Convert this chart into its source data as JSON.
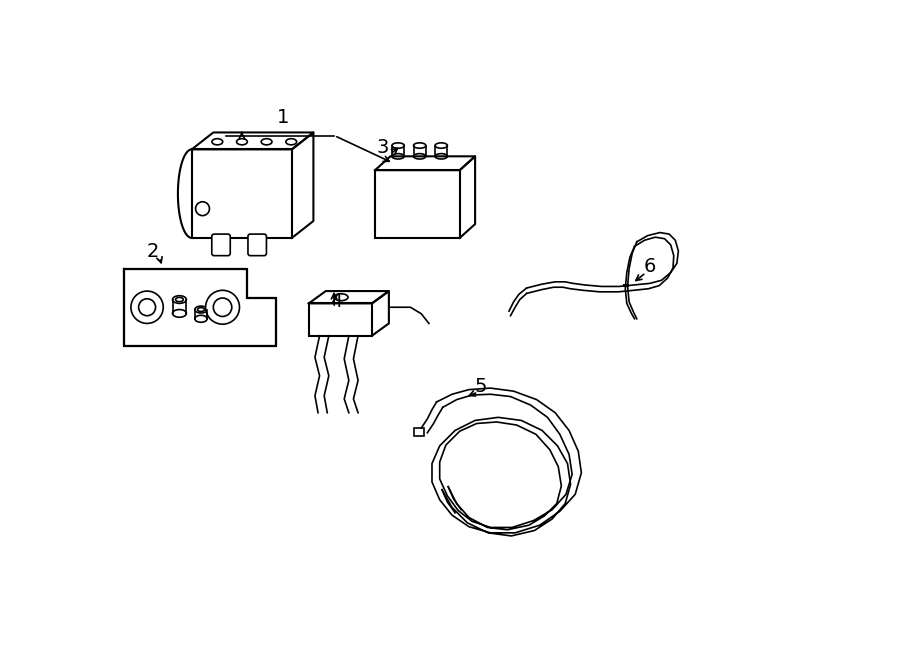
{
  "background_color": "#ffffff",
  "line_color": "#000000",
  "line_width": 1.5,
  "fig_width": 9.0,
  "fig_height": 6.61,
  "dpi": 100
}
